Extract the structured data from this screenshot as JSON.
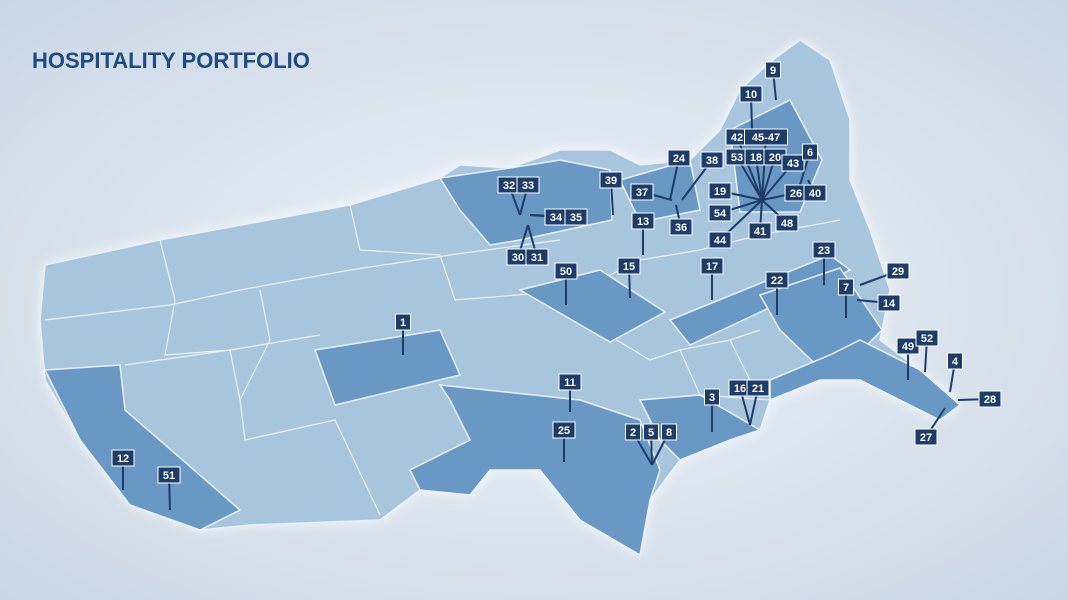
{
  "title": "HOSPITALITY PORTFOLIO",
  "markers": [
    "1",
    "9",
    "10",
    "42",
    "45-47",
    "53",
    "18",
    "20",
    "43",
    "6",
    "19",
    "26",
    "40",
    "54",
    "48",
    "41",
    "44",
    "24",
    "38",
    "37",
    "36",
    "39",
    "13",
    "15",
    "17",
    "22",
    "23",
    "29",
    "7",
    "14",
    "49",
    "52",
    "4",
    "28",
    "27",
    "11",
    "25",
    "2",
    "5",
    "8",
    "3",
    "16",
    "21",
    "32",
    "33",
    "34",
    "35",
    "30",
    "31",
    "50",
    "12",
    "51"
  ]
}
